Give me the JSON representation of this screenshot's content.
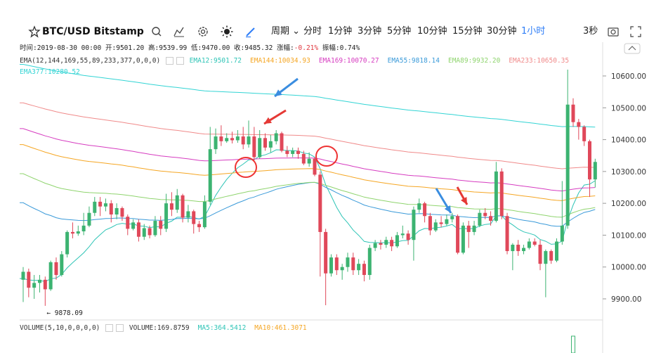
{
  "toolbar": {
    "symbol": "BTC/USD Bitstamp",
    "period_label": "周期",
    "timeframes": [
      "分时",
      "1分钟",
      "3分钟",
      "5分钟",
      "10分钟",
      "15分钟",
      "30分钟",
      "1小时"
    ],
    "active_timeframe": "1小时",
    "countdown": "3秒",
    "icons": [
      "star-icon",
      "search-icon",
      "indicator-icon",
      "settings-icon",
      "theme-icon",
      "draw-icon",
      "camera-icon",
      "fullscreen-icon"
    ]
  },
  "info": {
    "time_label": "时间:",
    "time": "2019-08-30 00:00",
    "open_label": "开:",
    "open": "9501.20",
    "high_label": "高:",
    "high": "9539.99",
    "low_label": "低:",
    "low": "9470.00",
    "close_label": "收:",
    "close": "9485.32",
    "change_label": "涨幅:",
    "change": "-0.21%",
    "amp_label": "振幅:",
    "amp": "0.74%"
  },
  "ema_legend": {
    "title": "EMA(12,144,169,55,89,233,377,0,0,0)",
    "items": [
      {
        "label": "EMA12:9501.72",
        "color": "#2ec4b6"
      },
      {
        "label": "EMA144:10034.93",
        "color": "#f5a623"
      },
      {
        "label": "EMA169:10070.27",
        "color": "#d63cc0"
      },
      {
        "label": "EMA55:9818.14",
        "color": "#3a9ad9"
      },
      {
        "label": "EMA89:9932.20",
        "color": "#8fd46e"
      },
      {
        "label": "EMA233:10650.35",
        "color": "#f08a8a"
      }
    ],
    "ema377": {
      "label": "EMA377:10280.52",
      "color": "#32d4d4"
    }
  },
  "volume_legend": {
    "title": "VOLUME(5,10,0,0,0,0)",
    "items": [
      {
        "label": "VOLUME:169.8759",
        "color": "#333333"
      },
      {
        "label": "MA5:364.5412",
        "color": "#2ec4b6"
      },
      {
        "label": "MA10:461.3071",
        "color": "#f5a623"
      }
    ]
  },
  "chart_data": {
    "type": "candlestick",
    "y_ticks": [
      10600,
      10500,
      10400,
      10300,
      10200,
      10100,
      10000,
      9900
    ],
    "y_tick_labels": [
      "10600.00",
      "10500.00",
      "10400.00",
      "10300.00",
      "10200.00",
      "10100.00",
      "10000.00",
      "9900.00"
    ],
    "ylim": [
      9845,
      10680
    ],
    "low_marker": {
      "label": "← 9878.09",
      "value": 9878.09
    },
    "colors": {
      "up": "#3cb371",
      "down": "#e0485a"
    },
    "candles": [
      [
        9960,
        9985,
        9890,
        10000
      ],
      [
        9985,
        9935,
        9905,
        9995
      ],
      [
        9935,
        9950,
        9900,
        9975
      ],
      [
        9950,
        9960,
        9920,
        9975
      ],
      [
        9960,
        9930,
        9878.09,
        9970
      ],
      [
        9930,
        10015,
        9925,
        10020
      ],
      [
        10015,
        9975,
        9960,
        10030
      ],
      [
        9975,
        10040,
        9970,
        10050
      ],
      [
        10040,
        10110,
        10030,
        10115
      ],
      [
        10110,
        10105,
        10090,
        10140
      ],
      [
        10105,
        10112,
        10098,
        10130
      ],
      [
        10112,
        10130,
        10100,
        10170
      ],
      [
        10130,
        10170,
        10125,
        10190
      ],
      [
        10170,
        10205,
        10160,
        10220
      ],
      [
        10205,
        10190,
        10160,
        10220
      ],
      [
        10190,
        10200,
        10175,
        10215
      ],
      [
        10200,
        10165,
        10140,
        10210
      ],
      [
        10165,
        10185,
        10150,
        10200
      ],
      [
        10185,
        10158,
        10145,
        10190
      ],
      [
        10158,
        10120,
        10100,
        10165
      ],
      [
        10120,
        10140,
        10115,
        10150
      ],
      [
        10140,
        10095,
        10080,
        10150
      ],
      [
        10095,
        10122,
        10085,
        10135
      ],
      [
        10122,
        10100,
        10090,
        10130
      ],
      [
        10100,
        10145,
        10095,
        10160
      ],
      [
        10145,
        10120,
        10100,
        10160
      ],
      [
        10120,
        10200,
        10110,
        10230
      ],
      [
        10200,
        10180,
        10160,
        10235
      ],
      [
        10180,
        10225,
        10170,
        10245
      ],
      [
        10225,
        10155,
        10140,
        10230
      ],
      [
        10155,
        10175,
        10140,
        10195
      ],
      [
        10175,
        10135,
        10105,
        10180
      ],
      [
        10135,
        10125,
        10110,
        10145
      ],
      [
        10125,
        10205,
        10120,
        10225
      ],
      [
        10205,
        10370,
        10195,
        10440
      ],
      [
        10370,
        10410,
        10355,
        10435
      ],
      [
        10410,
        10395,
        10380,
        10445
      ],
      [
        10395,
        10405,
        10390,
        10420
      ],
      [
        10405,
        10398,
        10388,
        10425
      ],
      [
        10398,
        10410,
        10390,
        10430
      ],
      [
        10410,
        10385,
        10370,
        10440
      ],
      [
        10385,
        10410,
        10375,
        10460
      ],
      [
        10410,
        10345,
        10335,
        10440
      ],
      [
        10345,
        10405,
        10340,
        10430
      ],
      [
        10405,
        10375,
        10365,
        10420
      ],
      [
        10375,
        10395,
        10360,
        10415
      ],
      [
        10395,
        10420,
        10385,
        10430
      ],
      [
        10420,
        10365,
        10360,
        10425
      ],
      [
        10365,
        10355,
        10345,
        10380
      ],
      [
        10355,
        10365,
        10345,
        10375
      ],
      [
        10365,
        10355,
        10340,
        10375
      ],
      [
        10355,
        10325,
        10320,
        10365
      ],
      [
        10325,
        10340,
        10315,
        10360
      ],
      [
        10340,
        10290,
        10285,
        10345
      ],
      [
        10290,
        10110,
        9970,
        10300
      ],
      [
        10110,
        9980,
        9880,
        10120
      ],
      [
        9980,
        10030,
        9970,
        10040
      ],
      [
        10030,
        9990,
        9975,
        10040
      ],
      [
        9990,
        10000,
        9960,
        10010
      ],
      [
        10000,
        10030,
        9985,
        10045
      ],
      [
        10030,
        9990,
        9975,
        10045
      ],
      [
        9990,
        10010,
        9975,
        10025
      ],
      [
        10010,
        9975,
        9955,
        10020
      ],
      [
        9975,
        10060,
        9960,
        10070
      ],
      [
        10060,
        10075,
        10050,
        10085
      ],
      [
        10075,
        10070,
        10055,
        10085
      ],
      [
        10070,
        10085,
        10060,
        10095
      ],
      [
        10085,
        10065,
        10050,
        10095
      ],
      [
        10065,
        10100,
        10060,
        10110
      ],
      [
        10100,
        10105,
        10090,
        10130
      ],
      [
        10105,
        10085,
        10070,
        10115
      ],
      [
        10085,
        10180,
        10020,
        10190
      ],
      [
        10180,
        10200,
        10170,
        10215
      ],
      [
        10200,
        10160,
        10140,
        10205
      ],
      [
        10160,
        10115,
        10100,
        10170
      ],
      [
        10115,
        10140,
        10110,
        10150
      ],
      [
        10140,
        10135,
        10125,
        10160
      ],
      [
        10135,
        10150,
        10130,
        10165
      ],
      [
        10150,
        10160,
        10140,
        10170
      ],
      [
        10160,
        10045,
        10040,
        10165
      ],
      [
        10045,
        10130,
        10040,
        10140
      ],
      [
        10130,
        10110,
        10060,
        10145
      ],
      [
        10110,
        10130,
        10100,
        10145
      ],
      [
        10130,
        10170,
        10125,
        10180
      ],
      [
        10170,
        10160,
        10150,
        10185
      ],
      [
        10160,
        10145,
        10130,
        10175
      ],
      [
        10145,
        10300,
        10140,
        10330
      ],
      [
        10300,
        10160,
        10150,
        10310
      ],
      [
        10160,
        10050,
        10040,
        10170
      ],
      [
        10050,
        10070,
        9990,
        10075
      ],
      [
        10070,
        10050,
        10035,
        10085
      ],
      [
        10050,
        10060,
        10040,
        10070
      ],
      [
        10060,
        10080,
        10055,
        10090
      ],
      [
        10080,
        10070,
        10065,
        10090
      ],
      [
        10070,
        10010,
        9990,
        10085
      ],
      [
        10010,
        10050,
        9905,
        10055
      ],
      [
        10050,
        10020,
        10010,
        10055
      ],
      [
        10020,
        10080,
        10015,
        10090
      ],
      [
        10080,
        10130,
        10070,
        10270
      ],
      [
        10130,
        10510,
        10120,
        10620
      ],
      [
        10510,
        10455,
        10440,
        10530
      ],
      [
        10455,
        10440,
        10400,
        10465
      ],
      [
        10440,
        10395,
        10380,
        10445
      ],
      [
        10395,
        10275,
        10220,
        10400
      ],
      [
        10275,
        10330,
        10250,
        10340
      ]
    ]
  }
}
